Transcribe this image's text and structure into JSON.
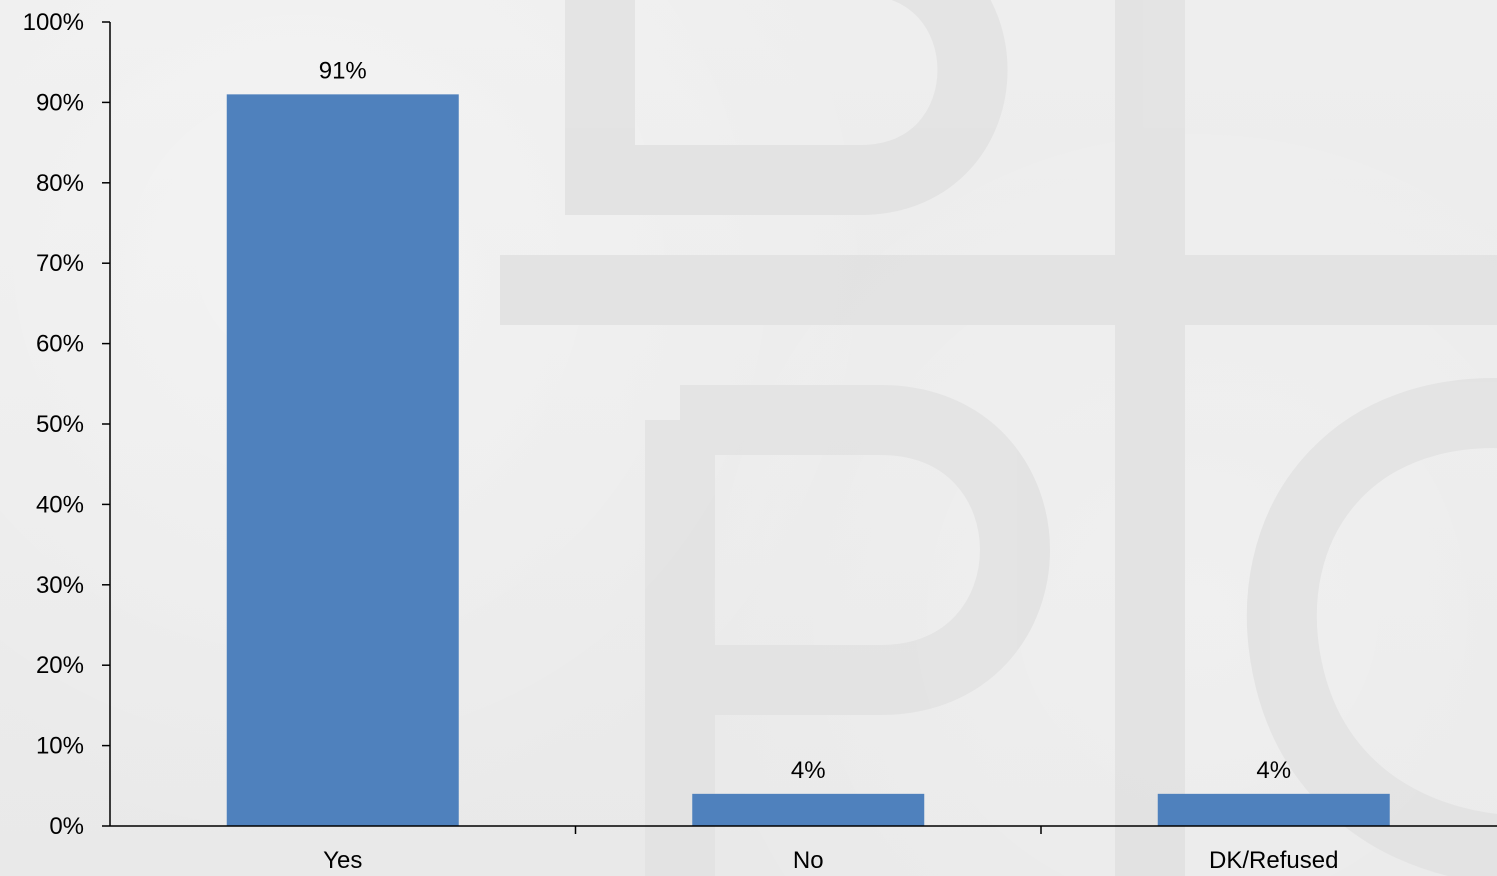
{
  "chart_data": {
    "type": "bar",
    "categories": [
      "Yes",
      "No",
      "DK/Refused"
    ],
    "values": [
      91,
      4,
      4
    ],
    "data_labels": [
      "91%",
      "4%",
      "4%"
    ],
    "ylim": [
      0,
      100
    ],
    "y_ticks": [
      "0%",
      "10%",
      "20%",
      "30%",
      "40%",
      "50%",
      "60%",
      "70%",
      "80%",
      "90%",
      "100%"
    ],
    "y_tick_values": [
      0,
      10,
      20,
      30,
      40,
      50,
      60,
      70,
      80,
      90,
      100
    ],
    "bar_color": "#4f81bd",
    "grid": false,
    "legend": "none"
  }
}
